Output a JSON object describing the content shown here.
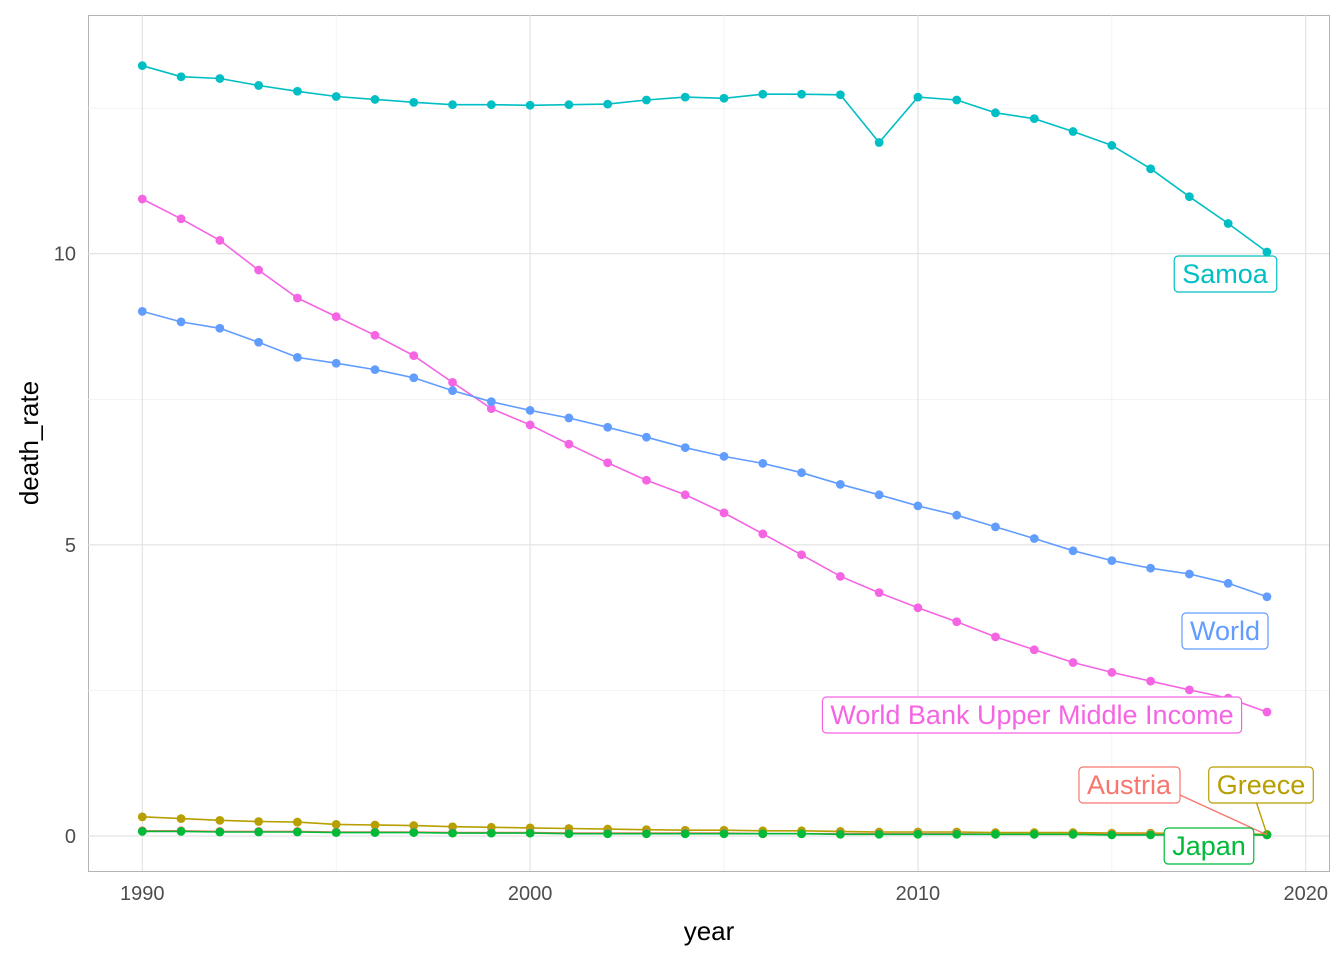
{
  "chart_data": {
    "type": "line",
    "xlabel": "year",
    "ylabel": "death_rate",
    "xlim": [
      1988.6,
      2020.6
    ],
    "ylim": [
      -0.6,
      14.1
    ],
    "x_ticks": [
      1990,
      2000,
      2010,
      2020
    ],
    "y_ticks": [
      0,
      5,
      10
    ],
    "grid": true,
    "legend": "none (direct labels at series ends)",
    "x": [
      1990,
      1991,
      1992,
      1993,
      1994,
      1995,
      1996,
      1997,
      1998,
      1999,
      2000,
      2001,
      2002,
      2003,
      2004,
      2005,
      2006,
      2007,
      2008,
      2009,
      2010,
      2011,
      2012,
      2013,
      2014,
      2015,
      2016,
      2017,
      2018,
      2019
    ],
    "series": [
      {
        "name": "Samoa",
        "color": "#00BFC4",
        "values": [
          13.23,
          13.04,
          13.01,
          12.89,
          12.79,
          12.7,
          12.65,
          12.6,
          12.56,
          12.56,
          12.55,
          12.56,
          12.57,
          12.64,
          12.69,
          12.67,
          12.74,
          12.74,
          12.73,
          11.91,
          12.69,
          12.64,
          12.42,
          12.32,
          12.1,
          11.86,
          11.46,
          10.98,
          10.52,
          10.03
        ]
      },
      {
        "name": "World Bank Upper Middle Income",
        "color": "#F564E3",
        "values": [
          10.94,
          10.6,
          10.23,
          9.72,
          9.24,
          8.92,
          8.6,
          8.25,
          7.79,
          7.34,
          7.06,
          6.73,
          6.41,
          6.11,
          5.86,
          5.55,
          5.19,
          4.83,
          4.46,
          4.18,
          3.92,
          3.68,
          3.42,
          3.2,
          2.98,
          2.81,
          2.66,
          2.51,
          2.37,
          2.13
        ]
      },
      {
        "name": "World",
        "color": "#619CFF",
        "values": [
          9.01,
          8.83,
          8.72,
          8.48,
          8.22,
          8.12,
          8.01,
          7.87,
          7.65,
          7.46,
          7.31,
          7.18,
          7.02,
          6.85,
          6.67,
          6.52,
          6.4,
          6.24,
          6.04,
          5.86,
          5.67,
          5.51,
          5.31,
          5.11,
          4.9,
          4.73,
          4.6,
          4.5,
          4.34,
          4.11
        ]
      },
      {
        "name": "Greece",
        "color": "#B79F00",
        "values": [
          0.33,
          0.3,
          0.27,
          0.25,
          0.24,
          0.2,
          0.19,
          0.18,
          0.16,
          0.15,
          0.14,
          0.13,
          0.12,
          0.11,
          0.1,
          0.1,
          0.09,
          0.09,
          0.08,
          0.07,
          0.07,
          0.07,
          0.06,
          0.06,
          0.06,
          0.05,
          0.05,
          0.04,
          0.04,
          0.03
        ]
      },
      {
        "name": "Austria",
        "color": "#F8766D",
        "values": [
          0.09,
          0.09,
          0.08,
          0.08,
          0.08,
          0.07,
          0.07,
          0.07,
          0.06,
          0.06,
          0.06,
          0.05,
          0.05,
          0.05,
          0.05,
          0.05,
          0.04,
          0.04,
          0.04,
          0.04,
          0.04,
          0.04,
          0.03,
          0.03,
          0.03,
          0.03,
          0.03,
          0.02,
          0.02,
          0.02
        ]
      },
      {
        "name": "Japan",
        "color": "#00BA38",
        "values": [
          0.08,
          0.08,
          0.07,
          0.07,
          0.07,
          0.06,
          0.06,
          0.06,
          0.05,
          0.05,
          0.05,
          0.04,
          0.04,
          0.04,
          0.04,
          0.04,
          0.04,
          0.04,
          0.03,
          0.03,
          0.03,
          0.03,
          0.03,
          0.03,
          0.03,
          0.02,
          0.02,
          0.02,
          0.02,
          0.02
        ]
      }
    ],
    "labels": [
      {
        "text": "Samoa",
        "color": "#00BFC4",
        "series": "Samoa"
      },
      {
        "text": "World",
        "color": "#619CFF",
        "series": "World"
      },
      {
        "text": "World Bank Upper Middle Income",
        "color": "#F564E3",
        "series": "World Bank Upper Middle Income"
      },
      {
        "text": "Austria",
        "color": "#F8766D",
        "series": "Austria"
      },
      {
        "text": "Greece",
        "color": "#B79F00",
        "series": "Greece"
      },
      {
        "text": "Japan",
        "color": "#00BA38",
        "series": "Japan"
      }
    ]
  }
}
